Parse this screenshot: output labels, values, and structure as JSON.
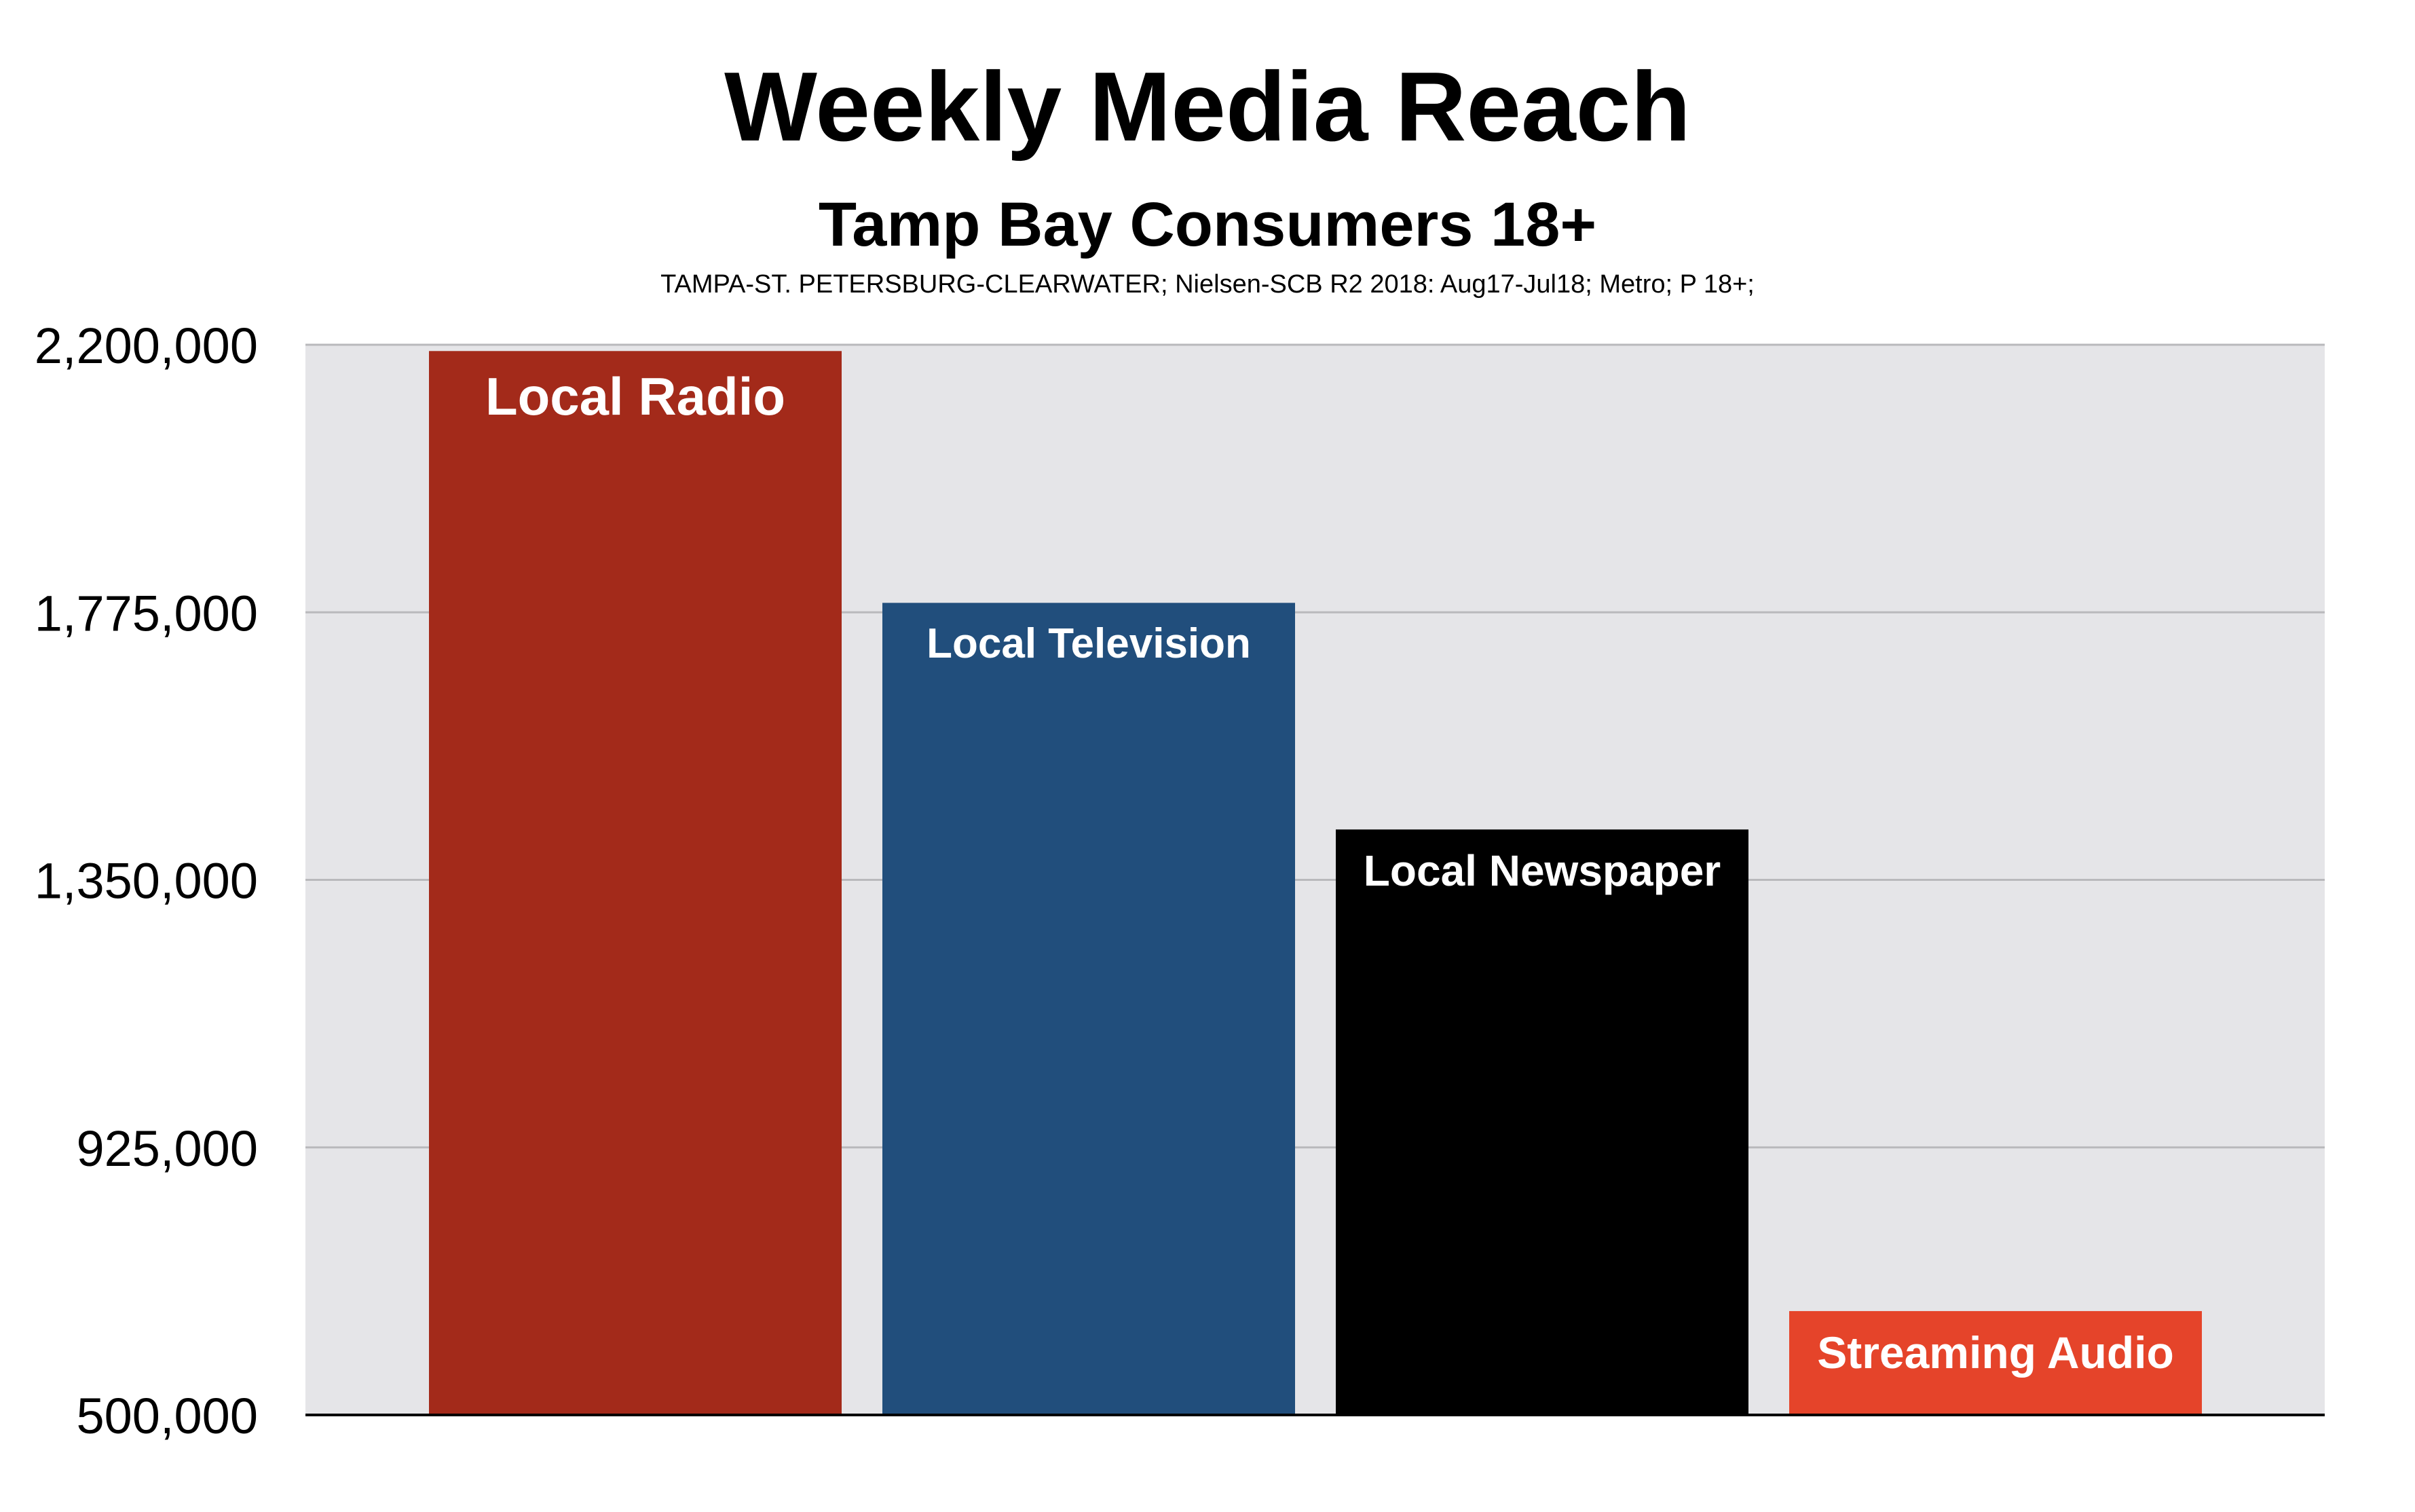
{
  "chart_data": {
    "type": "bar",
    "title": "Weekly Media Reach",
    "subtitle": "Tamp Bay Consumers 18+",
    "source_note": "TAMPA-ST. PETERSBURG-CLEARWATER; Nielsen-SCB R2 2018: Aug17-Jul18; Metro; P 18+;",
    "categories": [
      "Local Radio",
      "Local Television",
      "Local Newspaper",
      "Streaming Audio"
    ],
    "values": [
      2190000,
      1790000,
      1430000,
      665000
    ],
    "colors": [
      "#a32a1a",
      "#214e7c",
      "#000000",
      "#e5442a"
    ],
    "ylim": [
      500000,
      2200000
    ],
    "yticks": [
      500000,
      925000,
      1350000,
      1775000,
      2200000
    ],
    "ytick_labels": [
      "500,000",
      "925,000",
      "1,350,000",
      "1,775,000",
      "2,200,000"
    ],
    "grid": true,
    "plot_background": "#e5e5e8",
    "xlabel": "",
    "ylabel": ""
  }
}
